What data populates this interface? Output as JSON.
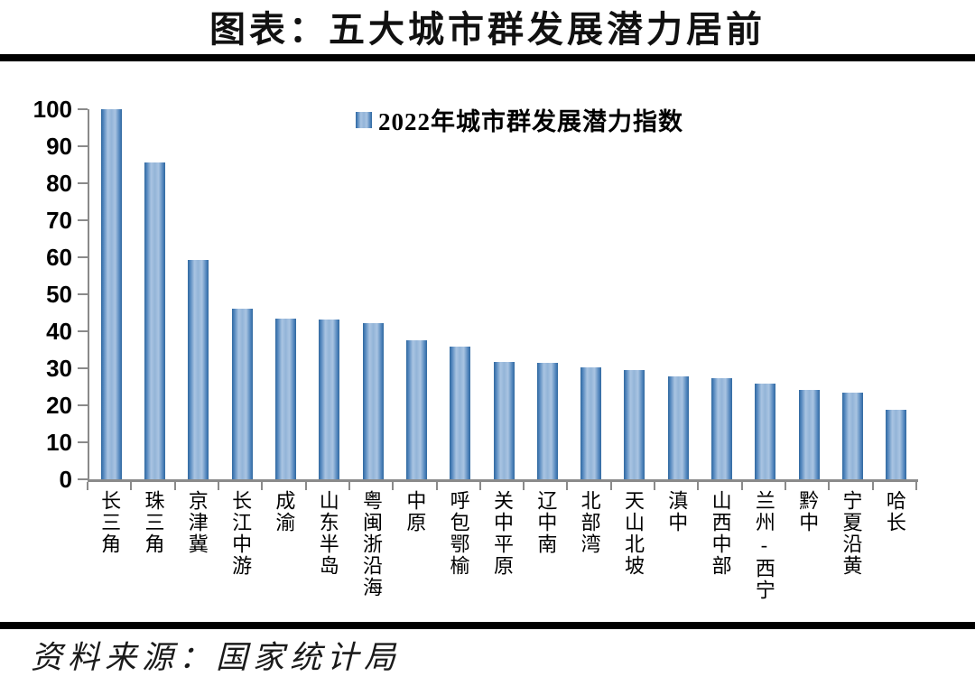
{
  "header": {
    "title": "图表：五大城市群发展潜力居前"
  },
  "footer": {
    "source": "资料来源：国家统计局"
  },
  "chart_data": {
    "type": "bar",
    "title": "图表：五大城市群发展潜力居前",
    "legend_label": "2022年城市群发展潜力指数",
    "legend_position": "top-center",
    "xlabel": "",
    "ylabel": "",
    "ylim": [
      0,
      100
    ],
    "yticks": [
      0,
      10,
      20,
      30,
      40,
      50,
      60,
      70,
      80,
      90,
      100
    ],
    "grid": false,
    "categories": [
      "长三角",
      "珠三角",
      "京津冀",
      "长江中游",
      "成渝",
      "山东半岛",
      "粤闽浙沿海",
      "中原",
      "呼包鄂榆",
      "关中平原",
      "辽中南",
      "北部湾",
      "天山北坡",
      "滇中",
      "山西中部",
      "兰州-西宁",
      "黔中",
      "宁夏沿黄",
      "哈长"
    ],
    "values": [
      100,
      85.6,
      59.2,
      46.0,
      43.5,
      43.1,
      42.3,
      37.6,
      35.9,
      31.8,
      31.5,
      30.2,
      29.6,
      27.7,
      27.3,
      25.8,
      24.2,
      23.5,
      18.8
    ],
    "colors": {
      "bar_edge": "#31689F",
      "bar_center": "#93B4D8",
      "bar_highlight": "#A9C4E2",
      "axis": "#8A8A8A",
      "rule": "#000000",
      "text": "#000000"
    }
  }
}
